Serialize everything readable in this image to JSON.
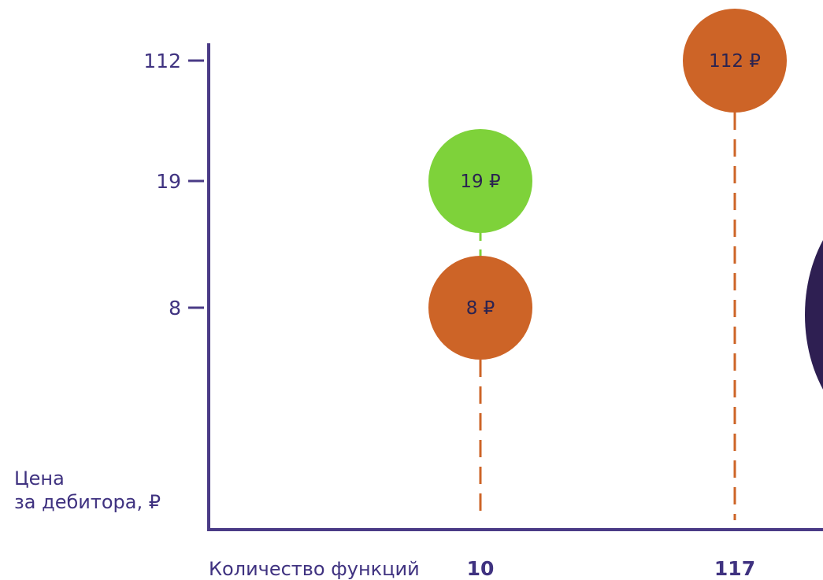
{
  "chart_data": {
    "type": "scatter",
    "title": "",
    "xlabel": "Количество функций",
    "ylabel_lines": [
      "Цена",
      "за дебитора, ₽"
    ],
    "y_ticks": [
      "112",
      "19",
      "8"
    ],
    "x_ticks": [
      "10",
      "117"
    ],
    "points": [
      {
        "x": "117",
        "y": "112",
        "label": "112 ₽",
        "color": "#cd6427"
      },
      {
        "x": "10",
        "y": "19",
        "label": "19 ₽",
        "color": "#7ed23a"
      },
      {
        "x": "10",
        "y": "8",
        "label": "8 ₽",
        "color": "#cd6427"
      }
    ],
    "partial_bubble_color": "#2e1f52",
    "axis_color": "#4a3b86",
    "text_color": "#3f3280",
    "label_color": "#2b2350"
  }
}
